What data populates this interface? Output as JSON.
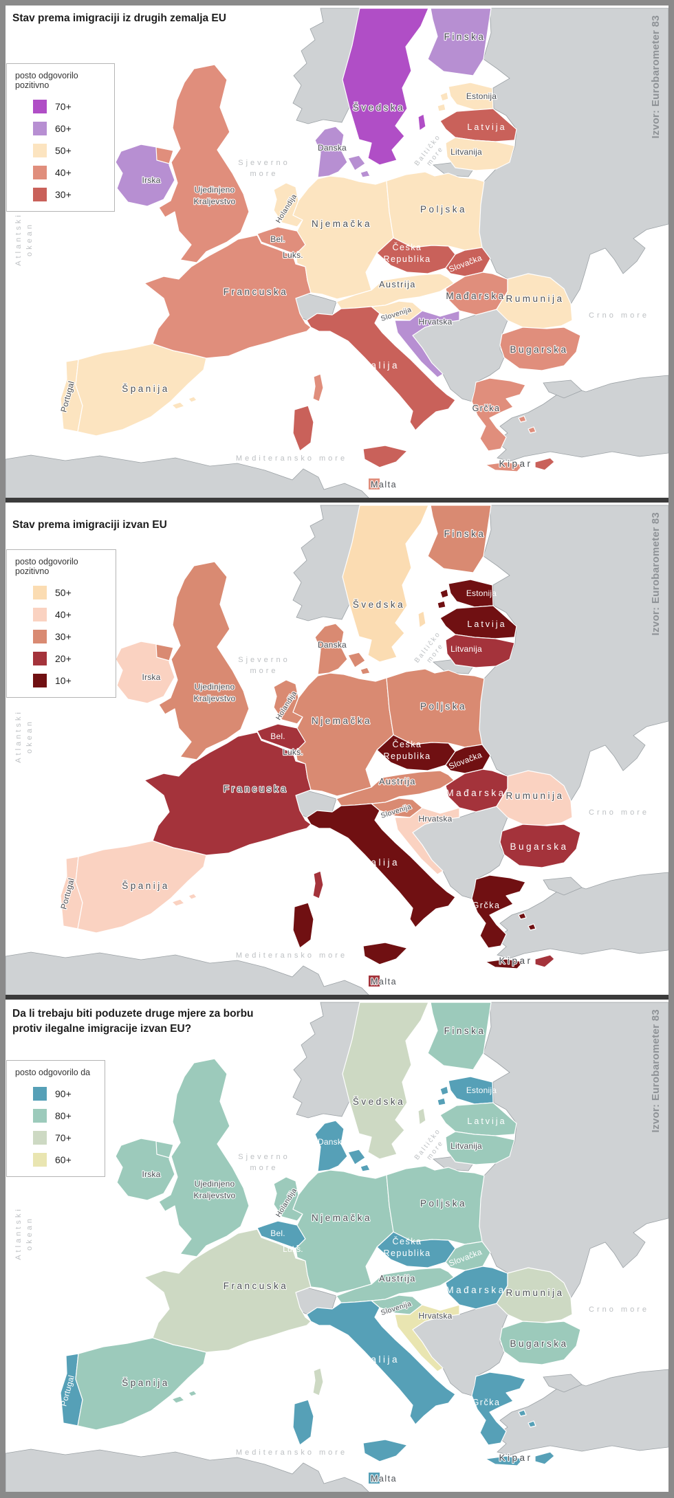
{
  "source_label": "Izvor: Eurobarometer 83",
  "colors": {
    "sea": "#ffffff",
    "non_eu_land": "#cfd2d4",
    "land_stroke": "#9aa0a4",
    "country_border": "#ffffff",
    "frame": "#8a8a8a",
    "separator": "#3b3b3b",
    "title": "#1d1d1d",
    "label_dark": "#4b4f54",
    "label_light": "#ffffff",
    "sea_label": "#bdc0c3",
    "source_color": "#8e9296"
  },
  "maps": [
    {
      "title_line1": "Stav prema imigraciji iz drugih zemalja EU",
      "title_line2": "",
      "legend_title": "posto odgovorilo pozitivno",
      "legend": [
        {
          "label": "70+",
          "color": "#b04ec6"
        },
        {
          "label": "60+",
          "color": "#b78fd2"
        },
        {
          "label": "50+",
          "color": "#fce4c0"
        },
        {
          "label": "40+",
          "color": "#e08e7c"
        },
        {
          "label": "30+",
          "color": "#c9615a"
        }
      ]
    },
    {
      "title_line1": "Stav prema imigraciji izvan EU",
      "title_line2": "",
      "legend_title": "posto odgovorilo pozitivno",
      "legend": [
        {
          "label": "50+",
          "color": "#fbdcb2"
        },
        {
          "label": "40+",
          "color": "#fad2c1"
        },
        {
          "label": "30+",
          "color": "#d98a72"
        },
        {
          "label": "20+",
          "color": "#a4333b"
        },
        {
          "label": "10+",
          "color": "#701012"
        }
      ]
    },
    {
      "title_line1": "Da li trebaju biti poduzete druge mjere za borbu",
      "title_line2": "protiv ilegalne imigracije izvan EU?",
      "legend_title": "posto odgovorilo da",
      "legend": [
        {
          "label": "90+",
          "color": "#56a0b7"
        },
        {
          "label": "80+",
          "color": "#9ccabb"
        },
        {
          "label": "70+",
          "color": "#cdd9c3"
        },
        {
          "label": "60+",
          "color": "#e9e5b1"
        }
      ]
    }
  ],
  "countries": [
    {
      "id": "ireland",
      "name": "Irska",
      "values": [
        "60+",
        "40+",
        "80+"
      ]
    },
    {
      "id": "uk",
      "name": "Ujedinjeno Kraljevstvo",
      "values": [
        "40+",
        "30+",
        "80+"
      ]
    },
    {
      "id": "portugal",
      "name": "Portugal",
      "values": [
        "50+",
        "40+",
        "90+"
      ]
    },
    {
      "id": "spain",
      "name": "Španija",
      "values": [
        "50+",
        "40+",
        "80+"
      ]
    },
    {
      "id": "france",
      "name": "Francuska",
      "values": [
        "40+",
        "20+",
        "70+"
      ]
    },
    {
      "id": "belgium",
      "name": "Bel.",
      "values": [
        "40+",
        "20+",
        "90+"
      ]
    },
    {
      "id": "netherlands",
      "name": "Holandija",
      "values": [
        "50+",
        "30+",
        "80+"
      ]
    },
    {
      "id": "luxembourg",
      "name": "Luks.",
      "values": [
        "70+",
        "40+",
        "90+"
      ]
    },
    {
      "id": "germany",
      "name": "Njemačka",
      "values": [
        "50+",
        "30+",
        "80+"
      ]
    },
    {
      "id": "denmark",
      "name": "Danska",
      "values": [
        "60+",
        "30+",
        "90+"
      ]
    },
    {
      "id": "sweden",
      "name": "Švedska",
      "values": [
        "70+",
        "50+",
        "70+"
      ]
    },
    {
      "id": "finland",
      "name": "Finska",
      "values": [
        "60+",
        "30+",
        "80+"
      ]
    },
    {
      "id": "estonia",
      "name": "Estonija",
      "values": [
        "50+",
        "10+",
        "90+"
      ]
    },
    {
      "id": "latvia",
      "name": "Latvija",
      "values": [
        "30+",
        "10+",
        "80+"
      ]
    },
    {
      "id": "lithuania",
      "name": "Litvanija",
      "values": [
        "50+",
        "20+",
        "80+"
      ]
    },
    {
      "id": "poland",
      "name": "Poljska",
      "values": [
        "50+",
        "30+",
        "80+"
      ]
    },
    {
      "id": "czech",
      "name": "Češka Republika",
      "values": [
        "30+",
        "10+",
        "90+"
      ]
    },
    {
      "id": "slovakia",
      "name": "Slovačka",
      "values": [
        "30+",
        "10+",
        "80+"
      ]
    },
    {
      "id": "austria",
      "name": "Austrija",
      "values": [
        "50+",
        "30+",
        "80+"
      ]
    },
    {
      "id": "hungary",
      "name": "Mađarska",
      "values": [
        "40+",
        "20+",
        "90+"
      ]
    },
    {
      "id": "slovenia",
      "name": "Slovenija",
      "values": [
        "50+",
        "30+",
        "80+"
      ]
    },
    {
      "id": "croatia",
      "name": "Hrvatska",
      "values": [
        "60+",
        "40+",
        "60+"
      ]
    },
    {
      "id": "romania",
      "name": "Rumunija",
      "values": [
        "50+",
        "40+",
        "70+"
      ]
    },
    {
      "id": "bulgaria",
      "name": "Bugarska",
      "values": [
        "40+",
        "20+",
        "80+"
      ]
    },
    {
      "id": "greece",
      "name": "Grčka",
      "values": [
        "40+",
        "10+",
        "90+"
      ]
    },
    {
      "id": "italy",
      "name": "Italija",
      "values": [
        "30+",
        "10+",
        "90+"
      ]
    },
    {
      "id": "cyprus",
      "name": "Kipar",
      "values": [
        "30+",
        "20+",
        "90+"
      ]
    },
    {
      "id": "malta",
      "name": "Malta",
      "values": [
        "40+",
        "20+",
        "90+"
      ]
    }
  ],
  "label_tones": {
    "map1_light": [
      "latvia",
      "czech",
      "slovakia",
      "italy"
    ],
    "map2_light": [
      "estonia",
      "latvia",
      "lithuania",
      "czech",
      "slovakia",
      "italy",
      "greece",
      "hungary",
      "belgium",
      "bulgaria"
    ],
    "map3_light": [
      "denmark",
      "estonia",
      "latvia",
      "czech",
      "slovakia",
      "italy",
      "greece",
      "hungary",
      "belgium",
      "luxembourg",
      "portugal"
    ]
  },
  "sea_labels": {
    "atlantic_line1": "Atlantski",
    "atlantic_line2": "okean",
    "north_sea_line1": "Sjeverno",
    "north_sea_line2": "more",
    "baltic_line1": "Baltičko",
    "baltic_line2": "more",
    "mediterranean": "Mediteransko more",
    "black_sea": "Crno more"
  }
}
